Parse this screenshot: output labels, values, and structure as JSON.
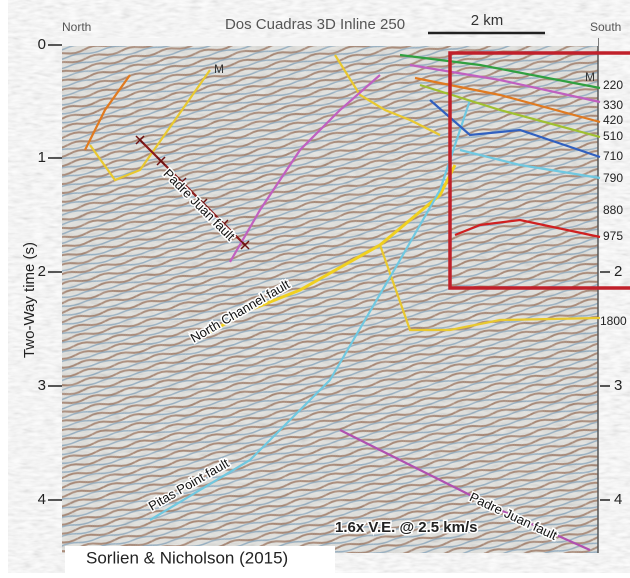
{
  "header": {
    "title": "Dos Cuadras 3D Inline 250",
    "left": "North",
    "right": "South",
    "scale": "2 km"
  },
  "axis": {
    "label": "Two-Way time (s)",
    "left_ticks": [
      "0",
      "1",
      "2",
      "3",
      "4"
    ],
    "right_ticks": [
      "2",
      "3",
      "4"
    ]
  },
  "horizons": {
    "m_labels": [
      "M",
      "M"
    ],
    "depths": [
      "220",
      "330",
      "420",
      "510",
      "710",
      "790",
      "880",
      "975",
      "1800"
    ]
  },
  "faults": [
    "Padre Juan fault",
    "North Channel fault",
    "Pitas Point fault",
    "Padre Juan fault"
  ],
  "note": "1.6x V.E. @ 2.5 km/s",
  "credit": "Sorlien & Nicholson (2015)"
}
